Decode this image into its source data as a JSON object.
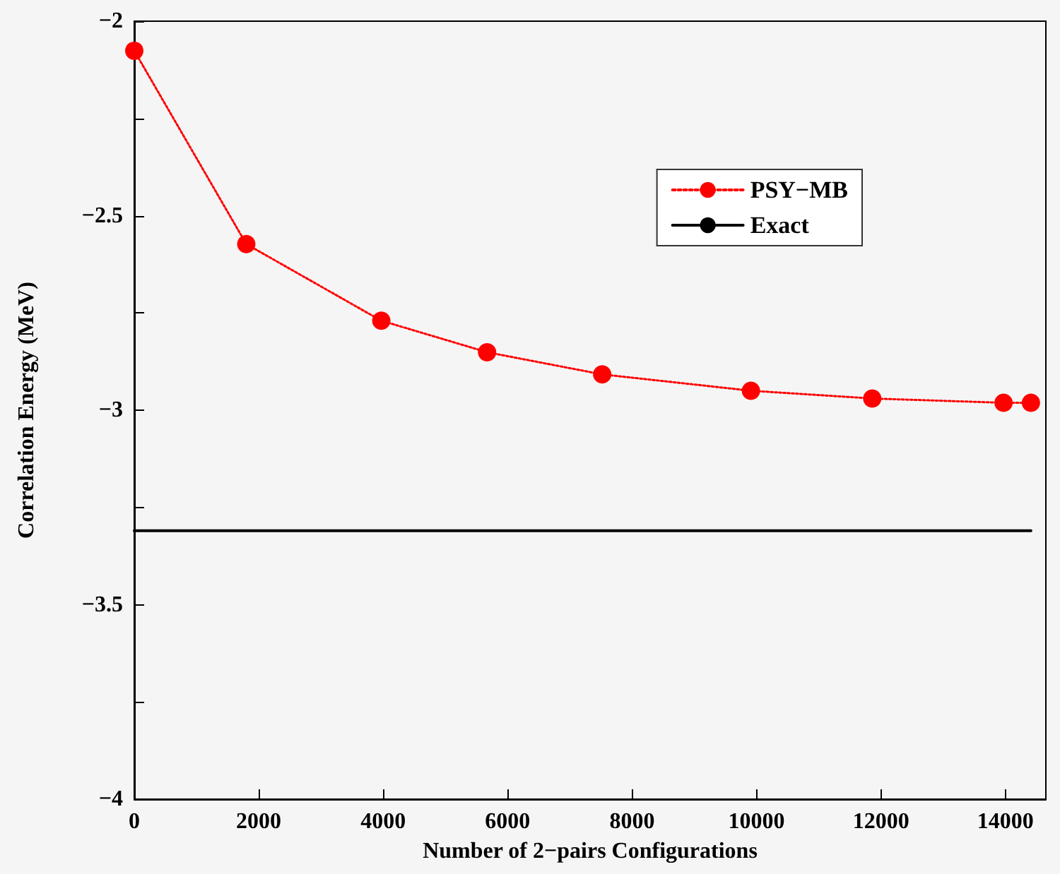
{
  "chart_data": {
    "type": "line",
    "xlabel": "Number of 2−pairs Configurations",
    "ylabel": "Correlation Energy (MeV)",
    "series": [
      {
        "name": "PSY−MB",
        "color": "#ff0000",
        "marker": "circle",
        "line_style": "dotted",
        "x": [
          0,
          1800,
          3970,
          5670,
          7520,
          9910,
          11860,
          13970,
          14410
        ],
        "values": [
          -2.076,
          -2.573,
          -2.77,
          -2.851,
          -2.908,
          -2.95,
          -2.97,
          -2.981,
          -2.981
        ]
      },
      {
        "name": "Exact",
        "color": "#000000",
        "marker": "none",
        "line_style": "solid",
        "x": [
          0,
          14410
        ],
        "values": [
          -3.31,
          -3.31
        ]
      }
    ],
    "xlim": [
      0,
      14650
    ],
    "xticks": [
      0,
      2000,
      4000,
      6000,
      8000,
      10000,
      12000,
      14000
    ],
    "ylim": [
      -4,
      -2
    ],
    "yticks": [
      -4,
      {
        "value": -3.75,
        "label": null
      },
      -3.5,
      {
        "value": -3.25,
        "label": null
      },
      -3,
      {
        "value": -2.75,
        "label": null
      },
      -2.5,
      {
        "value": -2.25,
        "label": null
      },
      -2
    ],
    "grid": false,
    "legend": "top right"
  }
}
